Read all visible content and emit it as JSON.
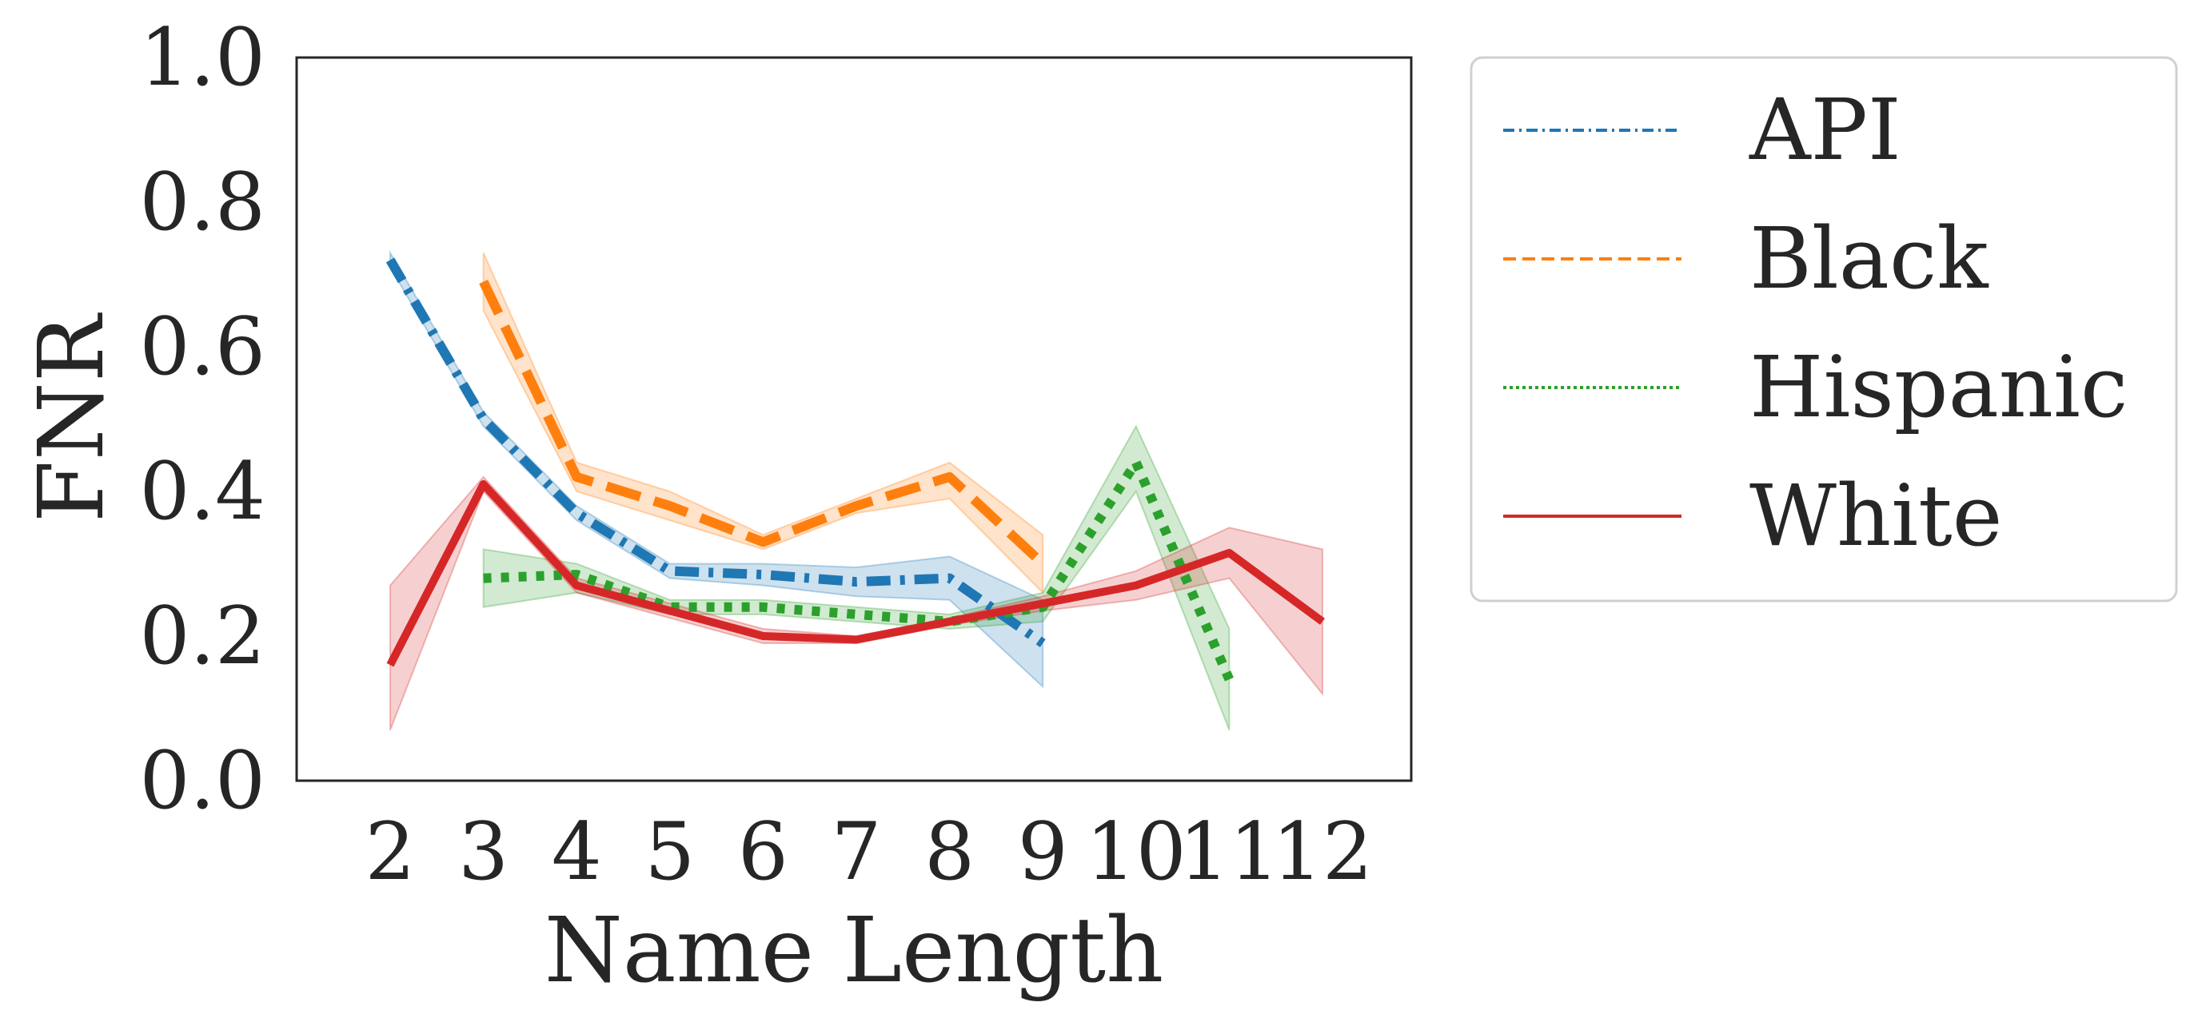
{
  "chart_data": {
    "type": "line",
    "xlabel": "Name Length",
    "ylabel": "FNR",
    "x_ticks": [
      2,
      3,
      4,
      5,
      6,
      7,
      8,
      9,
      10,
      11,
      12
    ],
    "ylim": [
      0.0,
      1.0
    ],
    "y_ticks": [
      "0.0",
      "0.2",
      "0.4",
      "0.6",
      "0.8",
      "1.0"
    ],
    "grid": false,
    "legend_position": "outside-right",
    "series": [
      {
        "name": "API",
        "color": "#1f77b4",
        "dash": "dashdot",
        "x": [
          2,
          3,
          4,
          5,
          6,
          7,
          8,
          9
        ],
        "values": [
          0.72,
          0.5,
          0.37,
          0.29,
          0.285,
          0.275,
          0.28,
          0.19
        ],
        "lower": [
          0.71,
          0.49,
          0.36,
          0.28,
          0.27,
          0.255,
          0.25,
          0.13
        ],
        "upper": [
          0.73,
          0.51,
          0.38,
          0.3,
          0.3,
          0.295,
          0.31,
          0.25
        ]
      },
      {
        "name": "Black",
        "color": "#ff7f0e",
        "dash": "dashed",
        "x": [
          3,
          4,
          5,
          6,
          7,
          8,
          9
        ],
        "values": [
          0.69,
          0.42,
          0.38,
          0.33,
          0.38,
          0.42,
          0.3
        ],
        "lower": [
          0.65,
          0.4,
          0.36,
          0.32,
          0.37,
          0.39,
          0.26
        ],
        "upper": [
          0.73,
          0.44,
          0.4,
          0.34,
          0.39,
          0.44,
          0.34
        ]
      },
      {
        "name": "Hispanic",
        "color": "#2ca02c",
        "dash": "dotted",
        "x": [
          3,
          4,
          5,
          6,
          7,
          8,
          9,
          10,
          11
        ],
        "values": [
          0.28,
          0.285,
          0.24,
          0.24,
          0.23,
          0.22,
          0.24,
          0.44,
          0.14
        ],
        "lower": [
          0.24,
          0.26,
          0.23,
          0.23,
          0.22,
          0.21,
          0.22,
          0.4,
          0.07
        ],
        "upper": [
          0.32,
          0.3,
          0.25,
          0.25,
          0.24,
          0.23,
          0.26,
          0.49,
          0.21
        ]
      },
      {
        "name": "White",
        "color": "#d62728",
        "dash": "solid",
        "x": [
          2,
          3,
          4,
          5,
          6,
          7,
          8,
          9,
          10,
          11,
          12
        ],
        "values": [
          0.16,
          0.41,
          0.27,
          0.235,
          0.2,
          0.195,
          0.22,
          0.245,
          0.27,
          0.315,
          0.22
        ],
        "lower": [
          0.07,
          0.4,
          0.26,
          0.225,
          0.19,
          0.19,
          0.215,
          0.235,
          0.25,
          0.28,
          0.12
        ],
        "upper": [
          0.27,
          0.42,
          0.28,
          0.245,
          0.21,
          0.2,
          0.225,
          0.255,
          0.29,
          0.35,
          0.32
        ]
      }
    ]
  }
}
